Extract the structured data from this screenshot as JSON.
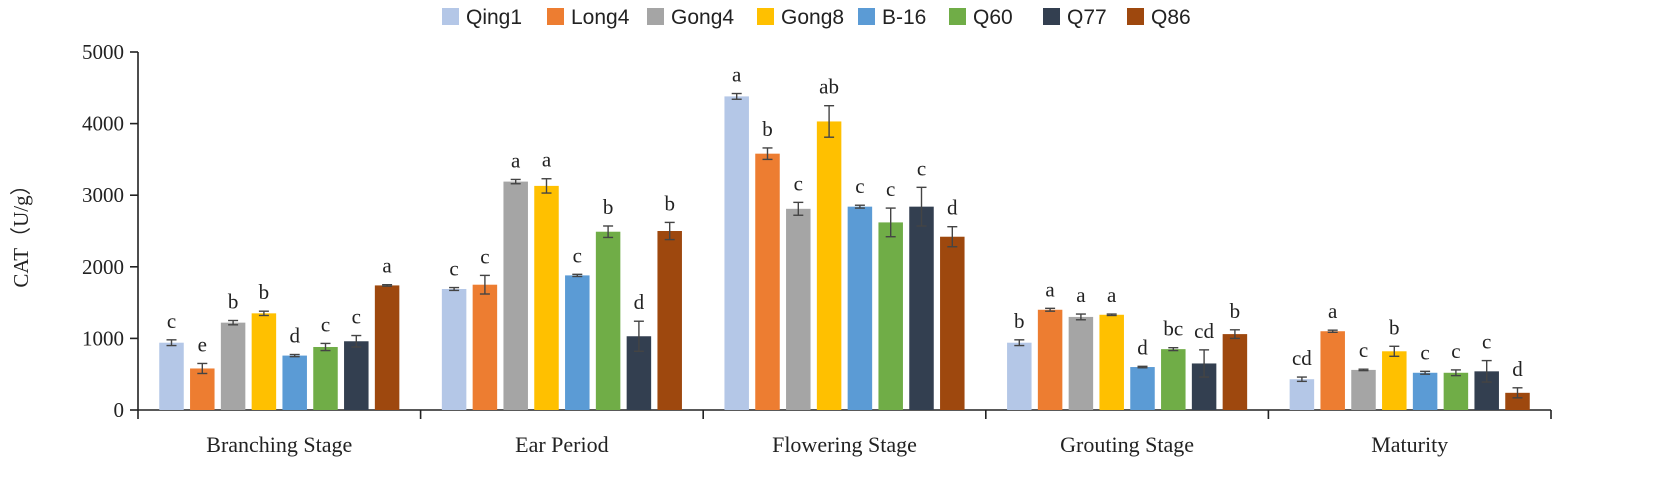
{
  "chart_data": {
    "type": "bar",
    "title": "",
    "xlabel": "",
    "ylabel": "CAT（U/g）",
    "ylim": [
      0,
      5000
    ],
    "yticks": [
      0,
      1000,
      2000,
      3000,
      4000,
      5000
    ],
    "legend_position": "top",
    "categories": [
      "Branching Stage",
      "Ear Period",
      "Flowering Stage",
      "Grouting Stage",
      "Maturity"
    ],
    "series": [
      {
        "name": "Qing1",
        "color": "#b4c7e7",
        "values": [
          940,
          1690,
          4380,
          940,
          430
        ],
        "errors": [
          40,
          20,
          40,
          40,
          30
        ],
        "labels": [
          "c",
          "c",
          "a",
          "b",
          "cd"
        ]
      },
      {
        "name": "Long4",
        "color": "#ed7d31",
        "values": [
          580,
          1750,
          3580,
          1400,
          1100
        ],
        "errors": [
          70,
          130,
          80,
          20,
          15
        ],
        "labels": [
          "e",
          "c",
          "b",
          "a",
          "a"
        ]
      },
      {
        "name": "Gong4",
        "color": "#a5a5a5",
        "values": [
          1220,
          3190,
          2810,
          1300,
          560
        ],
        "errors": [
          30,
          30,
          90,
          40,
          10
        ],
        "labels": [
          "b",
          "a",
          "c",
          "a",
          "c"
        ]
      },
      {
        "name": "Gong8",
        "color": "#ffc000",
        "values": [
          1350,
          3130,
          4030,
          1330,
          820
        ],
        "errors": [
          30,
          100,
          220,
          10,
          70
        ],
        "labels": [
          "b",
          "a",
          "ab",
          "a",
          "b"
        ]
      },
      {
        "name": "B-16",
        "color": "#5b9bd5",
        "values": [
          760,
          1880,
          2840,
          600,
          520
        ],
        "errors": [
          15,
          15,
          20,
          10,
          20
        ],
        "labels": [
          "d",
          "c",
          "c",
          "d",
          "c"
        ]
      },
      {
        "name": "Q60",
        "color": "#70ad47",
        "values": [
          880,
          2490,
          2620,
          850,
          520
        ],
        "errors": [
          50,
          80,
          200,
          20,
          40
        ],
        "labels": [
          "c",
          "b",
          "c",
          "bc",
          "c"
        ]
      },
      {
        "name": "Q77",
        "color": "#333f50",
        "values": [
          960,
          1030,
          2840,
          650,
          540
        ],
        "errors": [
          80,
          210,
          270,
          190,
          150
        ],
        "labels": [
          "c",
          "d",
          "c",
          "cd",
          "c"
        ]
      },
      {
        "name": "Q86",
        "color": "#9e480e",
        "values": [
          1740,
          2500,
          2420,
          1060,
          240
        ],
        "errors": [
          10,
          120,
          140,
          60,
          70
        ],
        "labels": [
          "a",
          "b",
          "d",
          "b",
          "d"
        ]
      }
    ]
  }
}
